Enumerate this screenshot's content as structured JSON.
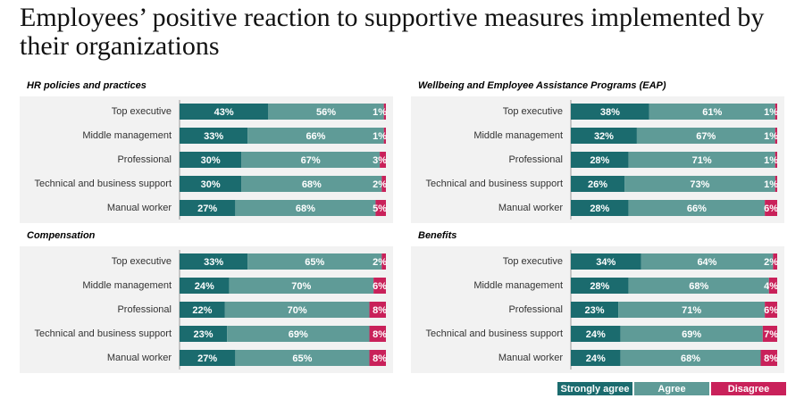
{
  "title": "Employees’ positive reaction to supportive measures implemented by their organizations",
  "chart_data": [
    {
      "type": "bar",
      "orientation": "horizontal",
      "stacked": true,
      "title": "HR policies and practices",
      "categories": [
        "Top executive",
        "Middle management",
        "Professional",
        "Technical and business support",
        "Manual worker"
      ],
      "xlim": [
        0,
        100
      ],
      "legend": "bottom-right",
      "series": [
        {
          "name": "Strongly agree",
          "color": "#1b6b6e",
          "values": [
            43,
            33,
            30,
            30,
            27
          ],
          "value_labels": [
            "43%",
            "33%",
            "30%",
            "30%",
            "27%"
          ]
        },
        {
          "name": "Agree",
          "color": "#5f9b97",
          "values": [
            56,
            66,
            67,
            68,
            68
          ],
          "value_labels": [
            "56%",
            "66%",
            "67%",
            "68%",
            "68%"
          ]
        },
        {
          "name": "Disagree",
          "color": "#c9215a",
          "values": [
            1,
            1,
            3,
            2,
            5
          ],
          "value_labels": [
            "1%",
            "1%",
            "3%",
            "2%",
            "5%"
          ]
        }
      ]
    },
    {
      "type": "bar",
      "orientation": "horizontal",
      "stacked": true,
      "title": "Wellbeing and Employee Assistance Programs (EAP)",
      "categories": [
        "Top executive",
        "Middle management",
        "Professional",
        "Technical and business support",
        "Manual worker"
      ],
      "xlim": [
        0,
        100
      ],
      "series": [
        {
          "color": "#1b6b6e",
          "values": [
            38,
            32,
            28,
            26,
            28
          ],
          "value_labels": [
            "38%",
            "32%",
            "28%",
            "26%",
            "28%"
          ]
        },
        {
          "color": "#5f9b97",
          "values": [
            61,
            67,
            71,
            73,
            66
          ],
          "value_labels": [
            "61%",
            "67%",
            "71%",
            "73%",
            "66%"
          ]
        },
        {
          "color": "#c9215a",
          "values": [
            1,
            1,
            1,
            1,
            6
          ],
          "value_labels": [
            "1%",
            "1%",
            "1%",
            "1%",
            "6%"
          ]
        }
      ]
    },
    {
      "type": "bar",
      "orientation": "horizontal",
      "stacked": true,
      "title": "Compensation",
      "categories": [
        "Top executive",
        "Middle management",
        "Professional",
        "Technical and business support",
        "Manual worker"
      ],
      "xlim": [
        0,
        100
      ],
      "series": [
        {
          "color": "#1b6b6e",
          "values": [
            33,
            24,
            22,
            23,
            27
          ],
          "value_labels": [
            "33%",
            "24%",
            "22%",
            "23%",
            "27%"
          ]
        },
        {
          "color": "#5f9b97",
          "values": [
            65,
            70,
            70,
            69,
            65
          ],
          "value_labels": [
            "65%",
            "70%",
            "70%",
            "69%",
            "65%"
          ]
        },
        {
          "color": "#c9215a",
          "values": [
            2,
            6,
            8,
            8,
            8
          ],
          "value_labels": [
            "2%",
            "6%",
            "8%",
            "8%",
            "8%"
          ]
        }
      ]
    },
    {
      "type": "bar",
      "orientation": "horizontal",
      "stacked": true,
      "title": "Benefits",
      "categories": [
        "Top executive",
        "Middle management",
        "Professional",
        "Technical and business support",
        "Manual worker"
      ],
      "xlim": [
        0,
        100
      ],
      "series": [
        {
          "color": "#1b6b6e",
          "values": [
            34,
            28,
            23,
            24,
            24
          ],
          "value_labels": [
            "34%",
            "28%",
            "23%",
            "24%",
            "24%"
          ]
        },
        {
          "color": "#5f9b97",
          "values": [
            64,
            68,
            71,
            69,
            68
          ],
          "value_labels": [
            "64%",
            "68%",
            "71%",
            "69%",
            "68%"
          ]
        },
        {
          "color": "#c9215a",
          "values": [
            2,
            4,
            6,
            7,
            8
          ],
          "value_labels": [
            "2%",
            "4%",
            "6%",
            "7%",
            "8%"
          ]
        }
      ]
    }
  ]
}
